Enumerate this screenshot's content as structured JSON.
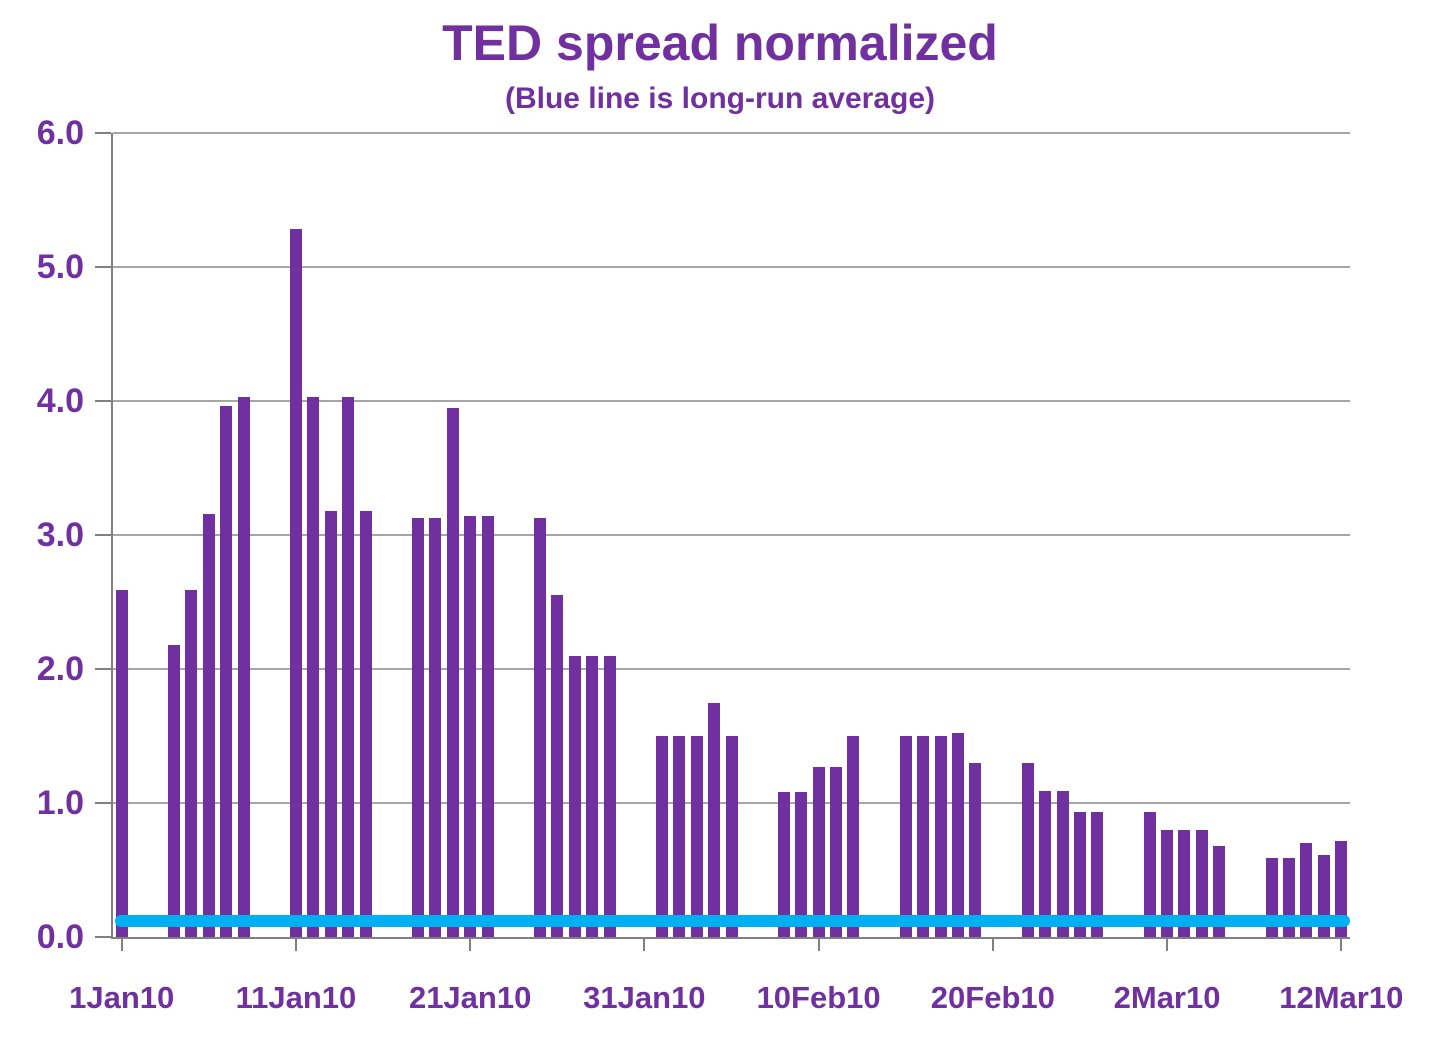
{
  "chart_data": {
    "type": "bar",
    "title": "TED spread normalized",
    "subtitle": "(Blue line is long-run average)",
    "legend_position": "none",
    "grid": "horizontal",
    "ylim": [
      0.0,
      6.0
    ],
    "ytick_step": 1.0,
    "ytick_labels": [
      "0.0",
      "1.0",
      "2.0",
      "3.0",
      "4.0",
      "5.0",
      "6.0"
    ],
    "xtick_labels": [
      {
        "label": "1Jan10",
        "day": 0
      },
      {
        "label": "11Jan10",
        "day": 10
      },
      {
        "label": "21Jan10",
        "day": 20
      },
      {
        "label": "31Jan10",
        "day": 30
      },
      {
        "label": "10Feb10",
        "day": 40
      },
      {
        "label": "20Feb10",
        "day": 50
      },
      {
        "label": "2Mar10",
        "day": 60
      },
      {
        "label": "12Mar10",
        "day": 70
      }
    ],
    "total_day_slots": 71,
    "long_run_average": 0.12,
    "colors": {
      "bar": "#7030A0",
      "average_line": "#00B0F0",
      "text": "#7030A0",
      "gridline": "#A6A6A6",
      "axis": "#808080"
    },
    "points": [
      {
        "date": "1Jan10",
        "day": 0,
        "value": 2.59
      },
      {
        "date": "4Jan10",
        "day": 3,
        "value": 2.18
      },
      {
        "date": "5Jan10",
        "day": 4,
        "value": 2.59
      },
      {
        "date": "6Jan10",
        "day": 5,
        "value": 3.16
      },
      {
        "date": "7Jan10",
        "day": 6,
        "value": 3.96
      },
      {
        "date": "8Jan10",
        "day": 7,
        "value": 4.03
      },
      {
        "date": "11Jan10",
        "day": 10,
        "value": 5.28
      },
      {
        "date": "12Jan10",
        "day": 11,
        "value": 4.03
      },
      {
        "date": "13Jan10",
        "day": 12,
        "value": 3.18
      },
      {
        "date": "14Jan10",
        "day": 13,
        "value": 4.03
      },
      {
        "date": "15Jan10",
        "day": 14,
        "value": 3.18
      },
      {
        "date": "18Jan10",
        "day": 17,
        "value": 3.13
      },
      {
        "date": "19Jan10",
        "day": 18,
        "value": 3.13
      },
      {
        "date": "20Jan10",
        "day": 19,
        "value": 3.95
      },
      {
        "date": "21Jan10",
        "day": 20,
        "value": 3.14
      },
      {
        "date": "22Jan10",
        "day": 21,
        "value": 3.14
      },
      {
        "date": "25Jan10",
        "day": 24,
        "value": 3.13
      },
      {
        "date": "26Jan10",
        "day": 25,
        "value": 2.55
      },
      {
        "date": "27Jan10",
        "day": 26,
        "value": 2.1
      },
      {
        "date": "28Jan10",
        "day": 27,
        "value": 2.1
      },
      {
        "date": "29Jan10",
        "day": 28,
        "value": 2.1
      },
      {
        "date": "1Feb10",
        "day": 31,
        "value": 1.5
      },
      {
        "date": "2Feb10",
        "day": 32,
        "value": 1.5
      },
      {
        "date": "3Feb10",
        "day": 33,
        "value": 1.5
      },
      {
        "date": "4Feb10",
        "day": 34,
        "value": 1.75
      },
      {
        "date": "5Feb10",
        "day": 35,
        "value": 1.5
      },
      {
        "date": "8Feb10",
        "day": 38,
        "value": 1.08
      },
      {
        "date": "9Feb10",
        "day": 39,
        "value": 1.08
      },
      {
        "date": "10Feb10",
        "day": 40,
        "value": 1.27
      },
      {
        "date": "11Feb10",
        "day": 41,
        "value": 1.27
      },
      {
        "date": "12Feb10",
        "day": 42,
        "value": 1.5
      },
      {
        "date": "15Feb10",
        "day": 45,
        "value": 1.5
      },
      {
        "date": "16Feb10",
        "day": 46,
        "value": 1.5
      },
      {
        "date": "17Feb10",
        "day": 47,
        "value": 1.5
      },
      {
        "date": "18Feb10",
        "day": 48,
        "value": 1.52
      },
      {
        "date": "19Feb10",
        "day": 49,
        "value": 1.3
      },
      {
        "date": "22Feb10",
        "day": 52,
        "value": 1.3
      },
      {
        "date": "23Feb10",
        "day": 53,
        "value": 1.09
      },
      {
        "date": "24Feb10",
        "day": 54,
        "value": 1.09
      },
      {
        "date": "25Feb10",
        "day": 55,
        "value": 0.93
      },
      {
        "date": "26Feb10",
        "day": 56,
        "value": 0.93
      },
      {
        "date": "1Mar10",
        "day": 59,
        "value": 0.93
      },
      {
        "date": "2Mar10",
        "day": 60,
        "value": 0.8
      },
      {
        "date": "3Mar10",
        "day": 61,
        "value": 0.8
      },
      {
        "date": "4Mar10",
        "day": 62,
        "value": 0.8
      },
      {
        "date": "5Mar10",
        "day": 63,
        "value": 0.68
      },
      {
        "date": "8Mar10",
        "day": 66,
        "value": 0.59
      },
      {
        "date": "9Mar10",
        "day": 67,
        "value": 0.59
      },
      {
        "date": "10Mar10",
        "day": 68,
        "value": 0.7
      },
      {
        "date": "11Mar10",
        "day": 69,
        "value": 0.61
      },
      {
        "date": "12Mar10",
        "day": 70,
        "value": 0.72
      }
    ]
  }
}
